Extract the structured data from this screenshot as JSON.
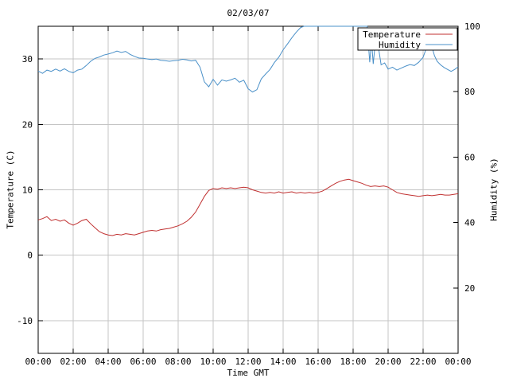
{
  "chart_data": {
    "type": "line",
    "title": "02/03/07",
    "xlabel": "Time GMT",
    "ylabel_left": "Temperature (C)",
    "ylabel_right": "Humidity (%)",
    "x_range": [
      0,
      24
    ],
    "y_left_range": [
      -15,
      35
    ],
    "y_right_range": [
      0,
      100
    ],
    "grid": true,
    "colors": {
      "grid": "#c4c4c4",
      "axis": "#000000",
      "background": "#ffffff",
      "temperature": "#c03030",
      "humidity": "#4a90c8"
    },
    "x_ticks": [
      {
        "t": 0,
        "label": "00:00"
      },
      {
        "t": 2,
        "label": "02:00"
      },
      {
        "t": 4,
        "label": "04:00"
      },
      {
        "t": 6,
        "label": "06:00"
      },
      {
        "t": 8,
        "label": "08:00"
      },
      {
        "t": 10,
        "label": "10:00"
      },
      {
        "t": 12,
        "label": "12:00"
      },
      {
        "t": 14,
        "label": "14:00"
      },
      {
        "t": 16,
        "label": "16:00"
      },
      {
        "t": 18,
        "label": "18:00"
      },
      {
        "t": 20,
        "label": "20:00"
      },
      {
        "t": 22,
        "label": "22:00"
      },
      {
        "t": 24,
        "label": "00:00"
      }
    ],
    "y_left_ticks": [
      {
        "v": -10,
        "label": "-10"
      },
      {
        "v": 0,
        "label": "0"
      },
      {
        "v": 10,
        "label": "10"
      },
      {
        "v": 20,
        "label": "20"
      },
      {
        "v": 30,
        "label": "30"
      }
    ],
    "y_right_ticks": [
      {
        "v": 20,
        "label": "20"
      },
      {
        "v": 40,
        "label": "40"
      },
      {
        "v": 60,
        "label": "60"
      },
      {
        "v": 80,
        "label": "80"
      },
      {
        "v": 100,
        "label": "100"
      }
    ],
    "legend": {
      "position": "top-right",
      "entries": [
        {
          "label": "Temperature",
          "color": "#c03030"
        },
        {
          "label": "Humidity",
          "color": "#4a90c8"
        }
      ]
    },
    "series": [
      {
        "name": "Temperature",
        "axis": "left",
        "color": "#c03030",
        "points": [
          [
            0,
            5.4
          ],
          [
            0.25,
            5.6
          ],
          [
            0.5,
            5.9
          ],
          [
            0.75,
            5.3
          ],
          [
            1,
            5.5
          ],
          [
            1.25,
            5.2
          ],
          [
            1.5,
            5.4
          ],
          [
            1.75,
            4.9
          ],
          [
            2,
            4.6
          ],
          [
            2.25,
            4.9
          ],
          [
            2.5,
            5.3
          ],
          [
            2.75,
            5.5
          ],
          [
            3,
            4.8
          ],
          [
            3.25,
            4.2
          ],
          [
            3.5,
            3.6
          ],
          [
            3.75,
            3.3
          ],
          [
            4,
            3.1
          ],
          [
            4.25,
            3.0
          ],
          [
            4.5,
            3.2
          ],
          [
            4.75,
            3.1
          ],
          [
            5,
            3.3
          ],
          [
            5.25,
            3.2
          ],
          [
            5.5,
            3.1
          ],
          [
            5.75,
            3.3
          ],
          [
            6,
            3.5
          ],
          [
            6.25,
            3.7
          ],
          [
            6.5,
            3.8
          ],
          [
            6.75,
            3.7
          ],
          [
            7,
            3.9
          ],
          [
            7.25,
            4.0
          ],
          [
            7.5,
            4.1
          ],
          [
            7.75,
            4.3
          ],
          [
            8,
            4.5
          ],
          [
            8.25,
            4.8
          ],
          [
            8.5,
            5.2
          ],
          [
            8.75,
            5.8
          ],
          [
            9,
            6.6
          ],
          [
            9.25,
            7.8
          ],
          [
            9.5,
            9.0
          ],
          [
            9.75,
            9.9
          ],
          [
            10,
            10.2
          ],
          [
            10.25,
            10.1
          ],
          [
            10.5,
            10.3
          ],
          [
            10.75,
            10.2
          ],
          [
            11,
            10.3
          ],
          [
            11.25,
            10.2
          ],
          [
            11.5,
            10.3
          ],
          [
            11.75,
            10.4
          ],
          [
            12,
            10.3
          ],
          [
            12.25,
            10.0
          ],
          [
            12.5,
            9.8
          ],
          [
            12.75,
            9.6
          ],
          [
            13,
            9.5
          ],
          [
            13.25,
            9.6
          ],
          [
            13.5,
            9.5
          ],
          [
            13.75,
            9.7
          ],
          [
            14,
            9.5
          ],
          [
            14.25,
            9.6
          ],
          [
            14.5,
            9.7
          ],
          [
            14.75,
            9.5
          ],
          [
            15,
            9.6
          ],
          [
            15.25,
            9.5
          ],
          [
            15.5,
            9.6
          ],
          [
            15.75,
            9.5
          ],
          [
            16,
            9.6
          ],
          [
            16.25,
            9.8
          ],
          [
            16.5,
            10.2
          ],
          [
            16.75,
            10.6
          ],
          [
            17,
            11.0
          ],
          [
            17.25,
            11.3
          ],
          [
            17.5,
            11.5
          ],
          [
            17.75,
            11.6
          ],
          [
            18,
            11.4
          ],
          [
            18.25,
            11.2
          ],
          [
            18.5,
            11.0
          ],
          [
            18.75,
            10.7
          ],
          [
            19,
            10.5
          ],
          [
            19.25,
            10.6
          ],
          [
            19.5,
            10.5
          ],
          [
            19.75,
            10.6
          ],
          [
            20,
            10.4
          ],
          [
            20.25,
            10.0
          ],
          [
            20.5,
            9.6
          ],
          [
            20.75,
            9.4
          ],
          [
            21,
            9.3
          ],
          [
            21.25,
            9.2
          ],
          [
            21.5,
            9.1
          ],
          [
            21.75,
            9.0
          ],
          [
            22,
            9.1
          ],
          [
            22.25,
            9.2
          ],
          [
            22.5,
            9.1
          ],
          [
            22.75,
            9.2
          ],
          [
            23,
            9.3
          ],
          [
            23.25,
            9.2
          ],
          [
            23.5,
            9.2
          ],
          [
            23.75,
            9.3
          ],
          [
            24,
            9.4
          ]
        ]
      },
      {
        "name": "Humidity",
        "axis": "right",
        "color": "#4a90c8",
        "points": [
          [
            0,
            86.3
          ],
          [
            0.25,
            85.6
          ],
          [
            0.5,
            86.6
          ],
          [
            0.75,
            86.2
          ],
          [
            1,
            86.9
          ],
          [
            1.25,
            86.3
          ],
          [
            1.5,
            87.0
          ],
          [
            1.75,
            86.2
          ],
          [
            2,
            85.8
          ],
          [
            2.25,
            86.6
          ],
          [
            2.5,
            86.9
          ],
          [
            2.75,
            88.0
          ],
          [
            3,
            89.3
          ],
          [
            3.25,
            90.2
          ],
          [
            3.5,
            90.6
          ],
          [
            3.75,
            91.2
          ],
          [
            4,
            91.5
          ],
          [
            4.25,
            91.9
          ],
          [
            4.5,
            92.4
          ],
          [
            4.75,
            92.0
          ],
          [
            5,
            92.3
          ],
          [
            5.25,
            91.4
          ],
          [
            5.5,
            90.8
          ],
          [
            5.75,
            90.3
          ],
          [
            6,
            90.2
          ],
          [
            6.25,
            90.0
          ],
          [
            6.5,
            89.8
          ],
          [
            6.75,
            90.0
          ],
          [
            7,
            89.6
          ],
          [
            7.25,
            89.5
          ],
          [
            7.5,
            89.3
          ],
          [
            7.75,
            89.5
          ],
          [
            8,
            89.6
          ],
          [
            8.25,
            89.9
          ],
          [
            8.5,
            89.7
          ],
          [
            8.75,
            89.4
          ],
          [
            9,
            89.6
          ],
          [
            9.25,
            87.5
          ],
          [
            9.5,
            83.0
          ],
          [
            9.75,
            81.5
          ],
          [
            10,
            83.8
          ],
          [
            10.25,
            82.0
          ],
          [
            10.5,
            83.6
          ],
          [
            10.75,
            83.2
          ],
          [
            11,
            83.6
          ],
          [
            11.25,
            84.1
          ],
          [
            11.5,
            82.9
          ],
          [
            11.75,
            83.5
          ],
          [
            12,
            80.9
          ],
          [
            12.25,
            79.9
          ],
          [
            12.5,
            80.6
          ],
          [
            12.75,
            83.9
          ],
          [
            13,
            85.4
          ],
          [
            13.25,
            86.8
          ],
          [
            13.5,
            88.9
          ],
          [
            13.75,
            90.5
          ],
          [
            14,
            92.8
          ],
          [
            14.25,
            94.6
          ],
          [
            14.5,
            96.5
          ],
          [
            14.75,
            98.2
          ],
          [
            15,
            99.6
          ],
          [
            15.2,
            100
          ],
          [
            18.8,
            100
          ],
          [
            18.95,
            89.0
          ],
          [
            19.05,
            95.8
          ],
          [
            19.15,
            88.5
          ],
          [
            19.3,
            96.9
          ],
          [
            19.45,
            93.5
          ],
          [
            19.6,
            88.2
          ],
          [
            19.8,
            88.8
          ],
          [
            20,
            86.9
          ],
          [
            20.25,
            87.5
          ],
          [
            20.5,
            86.6
          ],
          [
            20.75,
            87.2
          ],
          [
            21,
            87.8
          ],
          [
            21.25,
            88.3
          ],
          [
            21.5,
            88.0
          ],
          [
            21.75,
            89.0
          ],
          [
            22,
            90.5
          ],
          [
            22.2,
            93.5
          ],
          [
            22.35,
            95.2
          ],
          [
            22.5,
            93.8
          ],
          [
            22.65,
            91.0
          ],
          [
            22.8,
            89.3
          ],
          [
            23,
            88.2
          ],
          [
            23.2,
            87.4
          ],
          [
            23.4,
            86.8
          ],
          [
            23.6,
            86.2
          ],
          [
            23.8,
            86.8
          ],
          [
            24,
            87.6
          ]
        ]
      }
    ]
  }
}
